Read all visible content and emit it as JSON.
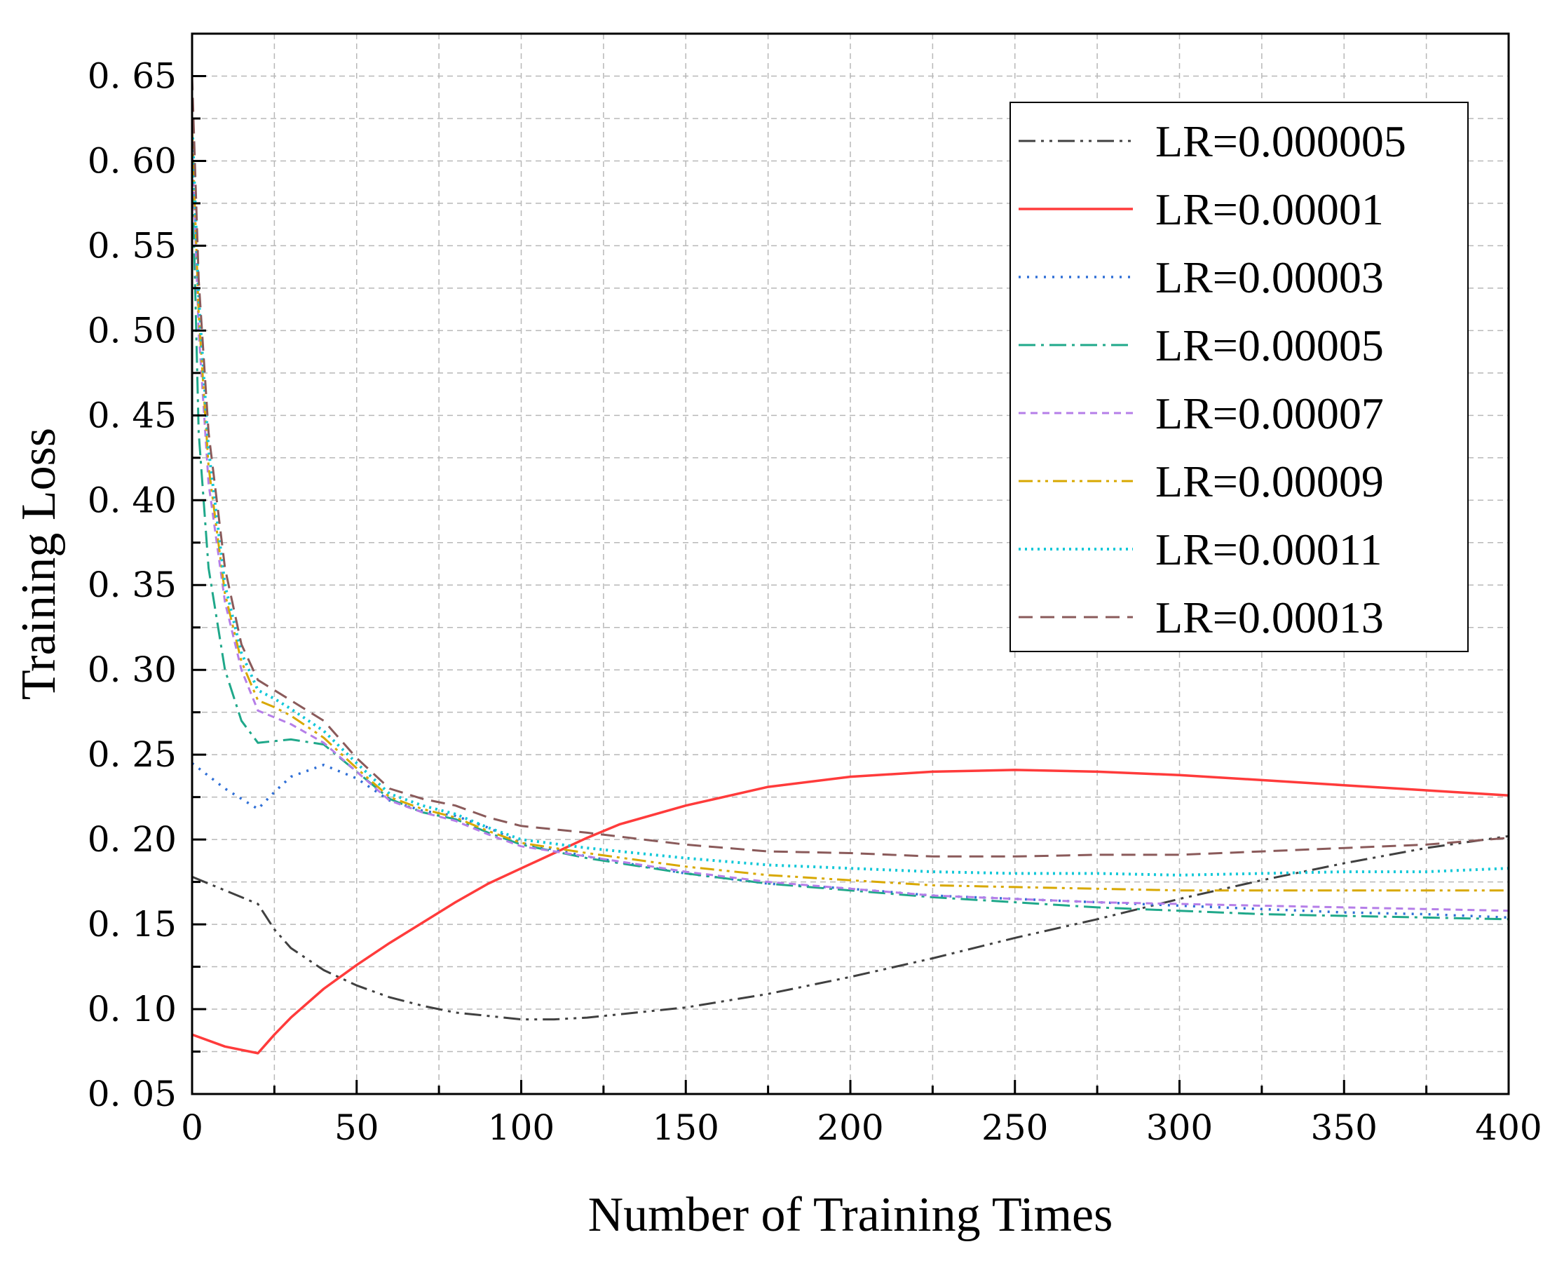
{
  "chart_data": {
    "type": "line",
    "title": "",
    "xlabel": "Number of Training Times",
    "ylabel": "Training Loss",
    "xlim": [
      0,
      400
    ],
    "ylim": [
      0.05,
      0.675
    ],
    "grid": true,
    "legend_position": "top-right",
    "x_ticks": [
      0,
      50,
      100,
      150,
      200,
      250,
      300,
      350,
      400
    ],
    "x_tick_labels": [
      "0",
      "50",
      "100",
      "150",
      "200",
      "250",
      "300",
      "350",
      "400"
    ],
    "y_ticks": [
      0.05,
      0.1,
      0.15,
      0.2,
      0.25,
      0.3,
      0.35,
      0.4,
      0.45,
      0.5,
      0.55,
      0.6,
      0.65
    ],
    "y_tick_labels": [
      "0. 05",
      "0. 10",
      "0. 15",
      "0. 20",
      "0. 25",
      "0. 30",
      "0. 35",
      "0. 40",
      "0. 45",
      "0. 50",
      "0. 55",
      "0. 60",
      "0. 65"
    ],
    "series": [
      {
        "name": "LR=0.000005",
        "color": "#404040",
        "dash": "24,8,4,8,4,8",
        "width": 3,
        "x": [
          0,
          20,
          25,
          30,
          40,
          50,
          60,
          70,
          80,
          90,
          100,
          110,
          120,
          130,
          150,
          175,
          200,
          225,
          250,
          275,
          300,
          325,
          350,
          375,
          400
        ],
        "y": [
          0.178,
          0.162,
          0.147,
          0.136,
          0.123,
          0.114,
          0.107,
          0.102,
          0.098,
          0.096,
          0.094,
          0.094,
          0.095,
          0.097,
          0.101,
          0.109,
          0.119,
          0.13,
          0.142,
          0.153,
          0.165,
          0.176,
          0.186,
          0.195,
          0.202
        ]
      },
      {
        "name": "LR=0.00001",
        "color": "#ff3b3b",
        "dash": "",
        "width": 3.5,
        "x": [
          0,
          10,
          20,
          25,
          30,
          40,
          50,
          60,
          70,
          80,
          90,
          100,
          110,
          120,
          130,
          150,
          175,
          200,
          225,
          250,
          275,
          300,
          325,
          350,
          375,
          400
        ],
        "y": [
          0.085,
          0.078,
          0.074,
          0.085,
          0.095,
          0.112,
          0.126,
          0.139,
          0.151,
          0.163,
          0.174,
          0.183,
          0.192,
          0.201,
          0.209,
          0.22,
          0.231,
          0.237,
          0.24,
          0.241,
          0.24,
          0.238,
          0.235,
          0.232,
          0.229,
          0.226
        ]
      },
      {
        "name": "LR=0.00003",
        "color": "#2f6fd6",
        "dash": "3,9",
        "width": 3.5,
        "x": [
          0,
          10,
          20,
          25,
          30,
          40,
          50,
          60,
          70,
          80,
          90,
          100,
          120,
          150,
          175,
          200,
          225,
          250,
          275,
          300,
          325,
          350,
          375,
          400
        ],
        "y": [
          0.245,
          0.23,
          0.218,
          0.228,
          0.237,
          0.244,
          0.236,
          0.223,
          0.217,
          0.214,
          0.207,
          0.198,
          0.19,
          0.18,
          0.174,
          0.171,
          0.167,
          0.165,
          0.163,
          0.161,
          0.159,
          0.157,
          0.156,
          0.154
        ]
      },
      {
        "name": "LR=0.00005",
        "color": "#1fa88a",
        "dash": "24,8,4,8",
        "width": 3,
        "x": [
          0,
          2,
          5,
          10,
          15,
          20,
          25,
          30,
          40,
          50,
          60,
          70,
          80,
          90,
          100,
          120,
          150,
          175,
          200,
          225,
          250,
          275,
          300,
          325,
          350,
          375,
          400
        ],
        "y": [
          0.6,
          0.44,
          0.36,
          0.3,
          0.27,
          0.257,
          0.258,
          0.259,
          0.256,
          0.24,
          0.224,
          0.216,
          0.212,
          0.204,
          0.197,
          0.189,
          0.18,
          0.174,
          0.17,
          0.166,
          0.163,
          0.16,
          0.158,
          0.156,
          0.155,
          0.154,
          0.153
        ]
      },
      {
        "name": "LR=0.00007",
        "color": "#b57ee8",
        "dash": "10,7",
        "width": 3,
        "x": [
          0,
          2,
          5,
          10,
          15,
          20,
          25,
          30,
          40,
          50,
          60,
          70,
          80,
          90,
          100,
          120,
          150,
          175,
          200,
          225,
          250,
          275,
          300,
          325,
          350,
          375,
          400
        ],
        "y": [
          0.61,
          0.5,
          0.41,
          0.34,
          0.3,
          0.276,
          0.272,
          0.268,
          0.257,
          0.24,
          0.223,
          0.216,
          0.211,
          0.203,
          0.196,
          0.19,
          0.181,
          0.175,
          0.171,
          0.167,
          0.165,
          0.163,
          0.162,
          0.161,
          0.16,
          0.159,
          0.158
        ]
      },
      {
        "name": "LR=0.00009",
        "color": "#d8a800",
        "dash": "20,7,4,7,4,7",
        "width": 3,
        "x": [
          0,
          2,
          5,
          10,
          15,
          20,
          25,
          30,
          40,
          50,
          60,
          70,
          80,
          90,
          100,
          120,
          150,
          175,
          200,
          225,
          250,
          275,
          300,
          325,
          350,
          375,
          400
        ],
        "y": [
          0.62,
          0.51,
          0.42,
          0.345,
          0.305,
          0.282,
          0.278,
          0.273,
          0.26,
          0.242,
          0.225,
          0.218,
          0.213,
          0.205,
          0.198,
          0.192,
          0.184,
          0.179,
          0.176,
          0.173,
          0.172,
          0.171,
          0.17,
          0.17,
          0.17,
          0.17,
          0.17
        ]
      },
      {
        "name": "LR=0.00011",
        "color": "#12c8d8",
        "dash": "3,6",
        "width": 4,
        "x": [
          0,
          2,
          5,
          10,
          15,
          20,
          25,
          30,
          40,
          50,
          60,
          70,
          80,
          90,
          100,
          120,
          150,
          175,
          200,
          225,
          250,
          275,
          300,
          325,
          350,
          375,
          400
        ],
        "y": [
          0.625,
          0.52,
          0.43,
          0.35,
          0.31,
          0.288,
          0.283,
          0.277,
          0.264,
          0.245,
          0.227,
          0.22,
          0.215,
          0.207,
          0.2,
          0.195,
          0.189,
          0.185,
          0.183,
          0.181,
          0.18,
          0.18,
          0.179,
          0.18,
          0.181,
          0.181,
          0.183
        ]
      },
      {
        "name": "LR=0.00013",
        "color": "#8a5a5a",
        "dash": "20,11",
        "width": 3,
        "x": [
          0,
          2,
          5,
          10,
          15,
          20,
          25,
          30,
          40,
          50,
          60,
          70,
          80,
          90,
          100,
          120,
          150,
          175,
          200,
          225,
          250,
          275,
          300,
          325,
          350,
          375,
          400
        ],
        "y": [
          0.65,
          0.53,
          0.44,
          0.36,
          0.315,
          0.294,
          0.288,
          0.282,
          0.27,
          0.248,
          0.23,
          0.224,
          0.22,
          0.213,
          0.208,
          0.204,
          0.197,
          0.193,
          0.192,
          0.19,
          0.19,
          0.191,
          0.191,
          0.193,
          0.195,
          0.197,
          0.201
        ]
      }
    ]
  }
}
